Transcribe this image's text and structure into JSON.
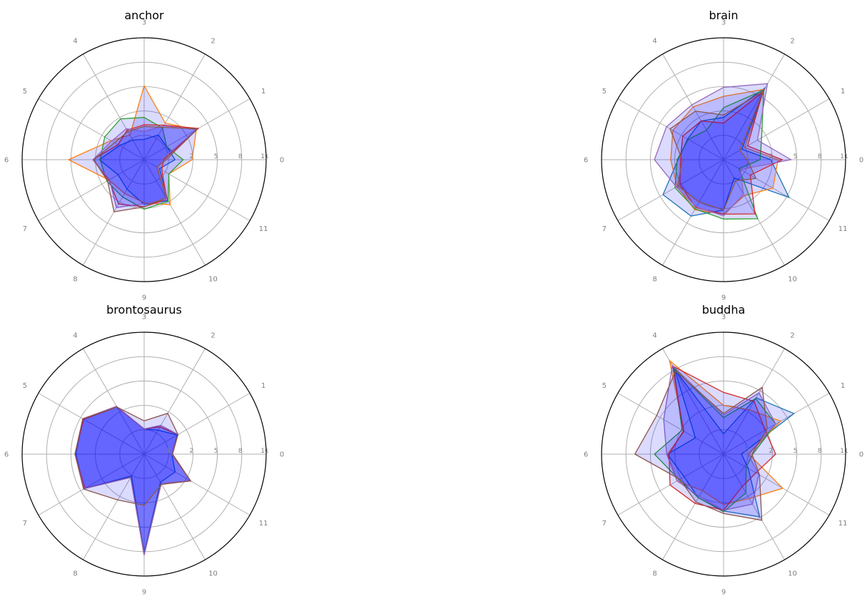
{
  "chart_data": [
    {
      "type": "radar",
      "title": "anchor",
      "angle_labels": [
        "0",
        "1",
        "2",
        "3",
        "4",
        "5",
        "6",
        "7",
        "8",
        "9",
        "10",
        "11"
      ],
      "radial_ticks": [
        -1,
        2,
        5,
        8,
        11
      ],
      "rlim": [
        -4,
        11
      ],
      "fill_color": "#0000ff",
      "series": [
        {
          "color": "#1f77b4",
          "values": [
            -0.2,
            -0.8,
            -0.5,
            -1.5,
            -1.2,
            -0.5,
            1.5,
            -0.3,
            0.2,
            1.5,
            1.8,
            -1.8
          ]
        },
        {
          "color": "#ff7f0e",
          "values": [
            1.9,
            3.4,
            1.2,
            5.1,
            -0.5,
            0.7,
            5.3,
            1.0,
            0.8,
            1.3,
            2.4,
            -0.5
          ]
        },
        {
          "color": "#2ca02c",
          "values": [
            0.8,
            -0.8,
            0.5,
            1.2,
            1.8,
            1.6,
            1.4,
            1.3,
            1.3,
            2.1,
            1.9,
            -0.5
          ]
        },
        {
          "color": "#d62728",
          "values": [
            -1.6,
            3.7,
            0.9,
            0.3,
            0.2,
            -0.3,
            2.3,
            1.0,
            2.3,
            1.8,
            1.6,
            -1.5
          ]
        },
        {
          "color": "#9467bd",
          "values": [
            -1.8,
            3.4,
            0.8,
            -0.5,
            0.4,
            0.6,
            2.3,
            0.9,
            2.8,
            1.4,
            1.6,
            -2.0
          ]
        },
        {
          "color": "#8c564b",
          "values": [
            -1.3,
            3.6,
            0.6,
            0.1,
            0.0,
            0.2,
            2.2,
            1.2,
            3.4,
            1.8,
            1.4,
            -2.2
          ]
        }
      ]
    },
    {
      "type": "radar",
      "title": "brain",
      "angle_labels": [
        "0",
        "1",
        "2",
        "3",
        "4",
        "5",
        "6",
        "7",
        "8",
        "9",
        "10",
        "11"
      ],
      "radial_ticks": [
        -1,
        2,
        5,
        8,
        11
      ],
      "rlim": [
        -4,
        11
      ],
      "fill_color": "#0000ff",
      "series": [
        {
          "color": "#1f77b4",
          "values": [
            1.8,
            -1.4,
            6.2,
            1.2,
            1.5,
            1.1,
            1.6,
            4.6,
            4.0,
            2.2,
            -1.4,
            5.3
          ]
        },
        {
          "color": "#ff7f0e",
          "values": [
            2.7,
            -1.0,
            6.0,
            3.8,
            3.5,
            3.2,
            2.5,
            2.6,
            3.1,
            2.7,
            1.1,
            3.0
          ]
        },
        {
          "color": "#2ca02c",
          "values": [
            0.5,
            1.4,
            5.9,
            2.4,
            0.2,
            1.0,
            1.7,
            2.9,
            3.0,
            3.3,
            4.4,
            -1.8
          ]
        },
        {
          "color": "#d62728",
          "values": [
            3.2,
            -0.6,
            5.6,
            0.5,
            1.5,
            1.8,
            1.3,
            2.2,
            2.8,
            2.7,
            3.7,
            -0.2
          ]
        },
        {
          "color": "#9467bd",
          "values": [
            4.3,
            0.8,
            6.8,
            4.9,
            3.8,
            4.1,
            4.5,
            2.7,
            2.7,
            2.9,
            0.9,
            -1.6
          ]
        },
        {
          "color": "#8c564b",
          "values": [
            -1.1,
            -1.7,
            5.7,
            1.5,
            2.9,
            3.6,
            1.1,
            2.5,
            2.0,
            2.2,
            -1.0,
            0.6
          ]
        }
      ]
    },
    {
      "type": "radar",
      "title": "brontosaurus",
      "angle_labels": [
        "0",
        "1",
        "2",
        "3",
        "4",
        "5",
        "6",
        "7",
        "8",
        "9",
        "10",
        "11"
      ],
      "radial_ticks": [
        -1,
        2,
        5,
        8,
        11
      ],
      "rlim": [
        -4,
        11
      ],
      "fill_color": "#0000ff",
      "series": [
        {
          "color": "#1f77b4",
          "values": [
            -0.6,
            0.7,
            -0.6,
            -0.9,
            2.7,
            4.7,
            4.4,
            4.5,
            -0.9,
            8.2,
            0.0,
            0.4
          ]
        },
        {
          "color": "#ff7f0e",
          "values": [
            -0.6,
            0.8,
            -0.1,
            -0.9,
            2.7,
            4.7,
            4.5,
            4.5,
            -0.7,
            8.4,
            0.2,
            2.6
          ]
        },
        {
          "color": "#2ca02c",
          "values": [
            -0.6,
            0.8,
            -0.1,
            -0.9,
            2.7,
            4.6,
            4.5,
            4.5,
            -0.7,
            8.4,
            0.2,
            2.6
          ]
        },
        {
          "color": "#d62728",
          "values": [
            -0.6,
            0.8,
            -0.1,
            -0.9,
            2.7,
            4.6,
            4.5,
            4.4,
            -0.7,
            8.4,
            0.2,
            2.6
          ]
        },
        {
          "color": "#9467bd",
          "values": [
            -0.6,
            0.8,
            0.1,
            -0.9,
            2.8,
            4.7,
            4.5,
            4.5,
            -0.7,
            8.4,
            0.2,
            2.6
          ]
        },
        {
          "color": "#8c564b",
          "values": [
            -0.5,
            0.8,
            1.8,
            0.1,
            2.7,
            4.7,
            4.5,
            4.6,
            2.5,
            2.3,
            0.3,
            2.6
          ]
        }
      ]
    },
    {
      "type": "radar",
      "title": "buddha",
      "angle_labels": [
        "0",
        "1",
        "2",
        "3",
        "4",
        "5",
        "6",
        "7",
        "8",
        "9",
        "10",
        "11"
      ],
      "radial_ticks": [
        -1,
        2,
        5,
        8,
        11
      ],
      "rlim": [
        -4,
        11
      ],
      "fill_color": "#0000ff",
      "series": [
        {
          "color": "#1f77b4",
          "values": [
            -1.8,
            6.0,
            4.0,
            -1.5,
            8.0,
            0.0,
            2.9,
            1.6,
            2.2,
            3.0,
            4.9,
            -0.5
          ]
        },
        {
          "color": "#ff7f0e",
          "values": [
            -0.9,
            4.1,
            2.3,
            2.0,
            9.3,
            1.6,
            2.9,
            2.6,
            1.2,
            2.2,
            2.3,
            4.4
          ]
        },
        {
          "color": "#2ca02c",
          "values": [
            -0.4,
            3.4,
            3.9,
            0.5,
            8.2,
            1.9,
            4.5,
            2.3,
            2.2,
            3.1,
            1.5,
            -0.8
          ]
        },
        {
          "color": "#d62728",
          "values": [
            2.4,
            1.9,
            3.5,
            3.6,
            8.5,
            1.7,
            2.7,
            3.6,
            3.0,
            2.9,
            0.6,
            0.6
          ]
        },
        {
          "color": "#9467bd",
          "values": [
            -1.0,
            3.4,
            4.7,
            0.8,
            8.6,
            4.5,
            3.0,
            2.6,
            2.0,
            2.9,
            3.1,
            1.0
          ]
        },
        {
          "color": "#8c564b",
          "values": [
            -0.5,
            2.2,
            5.5,
            1.0,
            7.8,
            5.5,
            6.9,
            2.2,
            2.8,
            3.3,
            5.4,
            1.1
          ]
        }
      ]
    }
  ]
}
